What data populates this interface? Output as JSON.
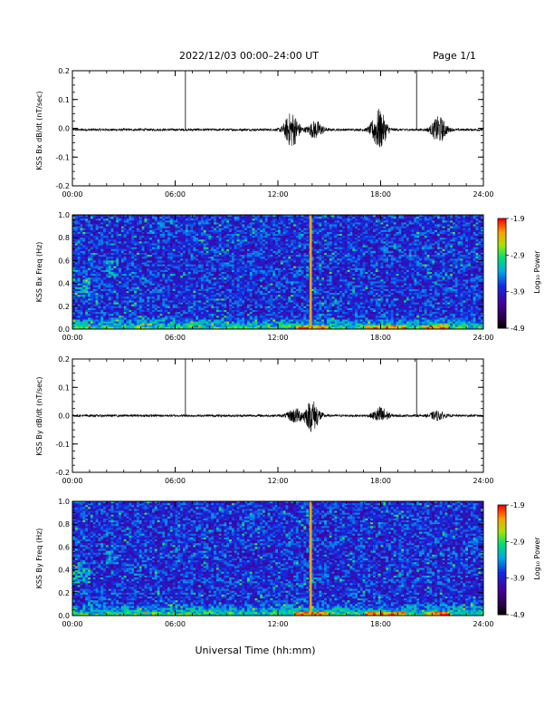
{
  "header": {
    "date_title": "2022/12/03  00:00–24:00 UT",
    "page": "Page 1/1"
  },
  "xlabel": "Universal Time (hh:mm)",
  "colorbar": {
    "label": "Log₁₀ Power",
    "ticks": [
      "-1.9",
      "-2.9",
      "-3.9",
      "-4.9"
    ]
  },
  "chart_data": [
    {
      "type": "line",
      "ylabel": "KSS Bx dB/dt (nT/sec)",
      "x_ticks": [
        "00:00",
        "06:00",
        "12:00",
        "18:00",
        "24:00"
      ],
      "xlim": [
        0,
        24
      ],
      "ylim": [
        -0.2,
        0.2
      ],
      "y_ticks": [
        "0.2",
        "0.1",
        "0.0",
        "-0.1",
        "-0.2"
      ],
      "baseline": -0.005,
      "spikes": [
        {
          "x": 6.6,
          "y": 0.2
        },
        {
          "x": 20.1,
          "y": 0.2
        }
      ],
      "activity": [
        {
          "x": 12.8,
          "amp": 0.06
        },
        {
          "x": 14.2,
          "amp": 0.03
        },
        {
          "x": 17.9,
          "amp": 0.07
        },
        {
          "x": 21.4,
          "amp": 0.045
        }
      ]
    },
    {
      "type": "heatmap",
      "ylabel": "KSS Bx Freq (Hz)",
      "x_ticks": [
        "00:00",
        "06:00",
        "12:00",
        "18:00",
        "24:00"
      ],
      "xlim": [
        0,
        24
      ],
      "ylim": [
        0,
        1.0
      ],
      "y_ticks": [
        "1.0",
        "0.8",
        "0.6",
        "0.4",
        "0.2",
        "0.0"
      ],
      "vertical_line_x": 13.9
    },
    {
      "type": "line",
      "ylabel": "KSS By dB/dt (nT/sec)",
      "x_ticks": [
        "00:00",
        "06:00",
        "12:00",
        "18:00",
        "24:00"
      ],
      "xlim": [
        0,
        24
      ],
      "ylim": [
        -0.2,
        0.2
      ],
      "y_ticks": [
        "0.2",
        "0.1",
        "0.0",
        "-0.1",
        "-0.2"
      ],
      "baseline": 0.0,
      "spikes": [
        {
          "x": 6.6,
          "y": 0.2
        },
        {
          "x": 20.1,
          "y": 0.2
        }
      ],
      "activity": [
        {
          "x": 13.0,
          "amp": 0.025
        },
        {
          "x": 14.0,
          "amp": 0.055
        },
        {
          "x": 18.0,
          "amp": 0.03
        },
        {
          "x": 21.3,
          "amp": 0.015
        }
      ]
    },
    {
      "type": "heatmap",
      "ylabel": "KSS By Freq (Hz)",
      "x_ticks": [
        "00:00",
        "06:00",
        "12:00",
        "18:00",
        "24:00"
      ],
      "xlim": [
        0,
        24
      ],
      "ylim": [
        0,
        1.0
      ],
      "y_ticks": [
        "1.0",
        "0.8",
        "0.6",
        "0.4",
        "0.2",
        "0.0"
      ],
      "vertical_line_x": 13.9
    }
  ]
}
